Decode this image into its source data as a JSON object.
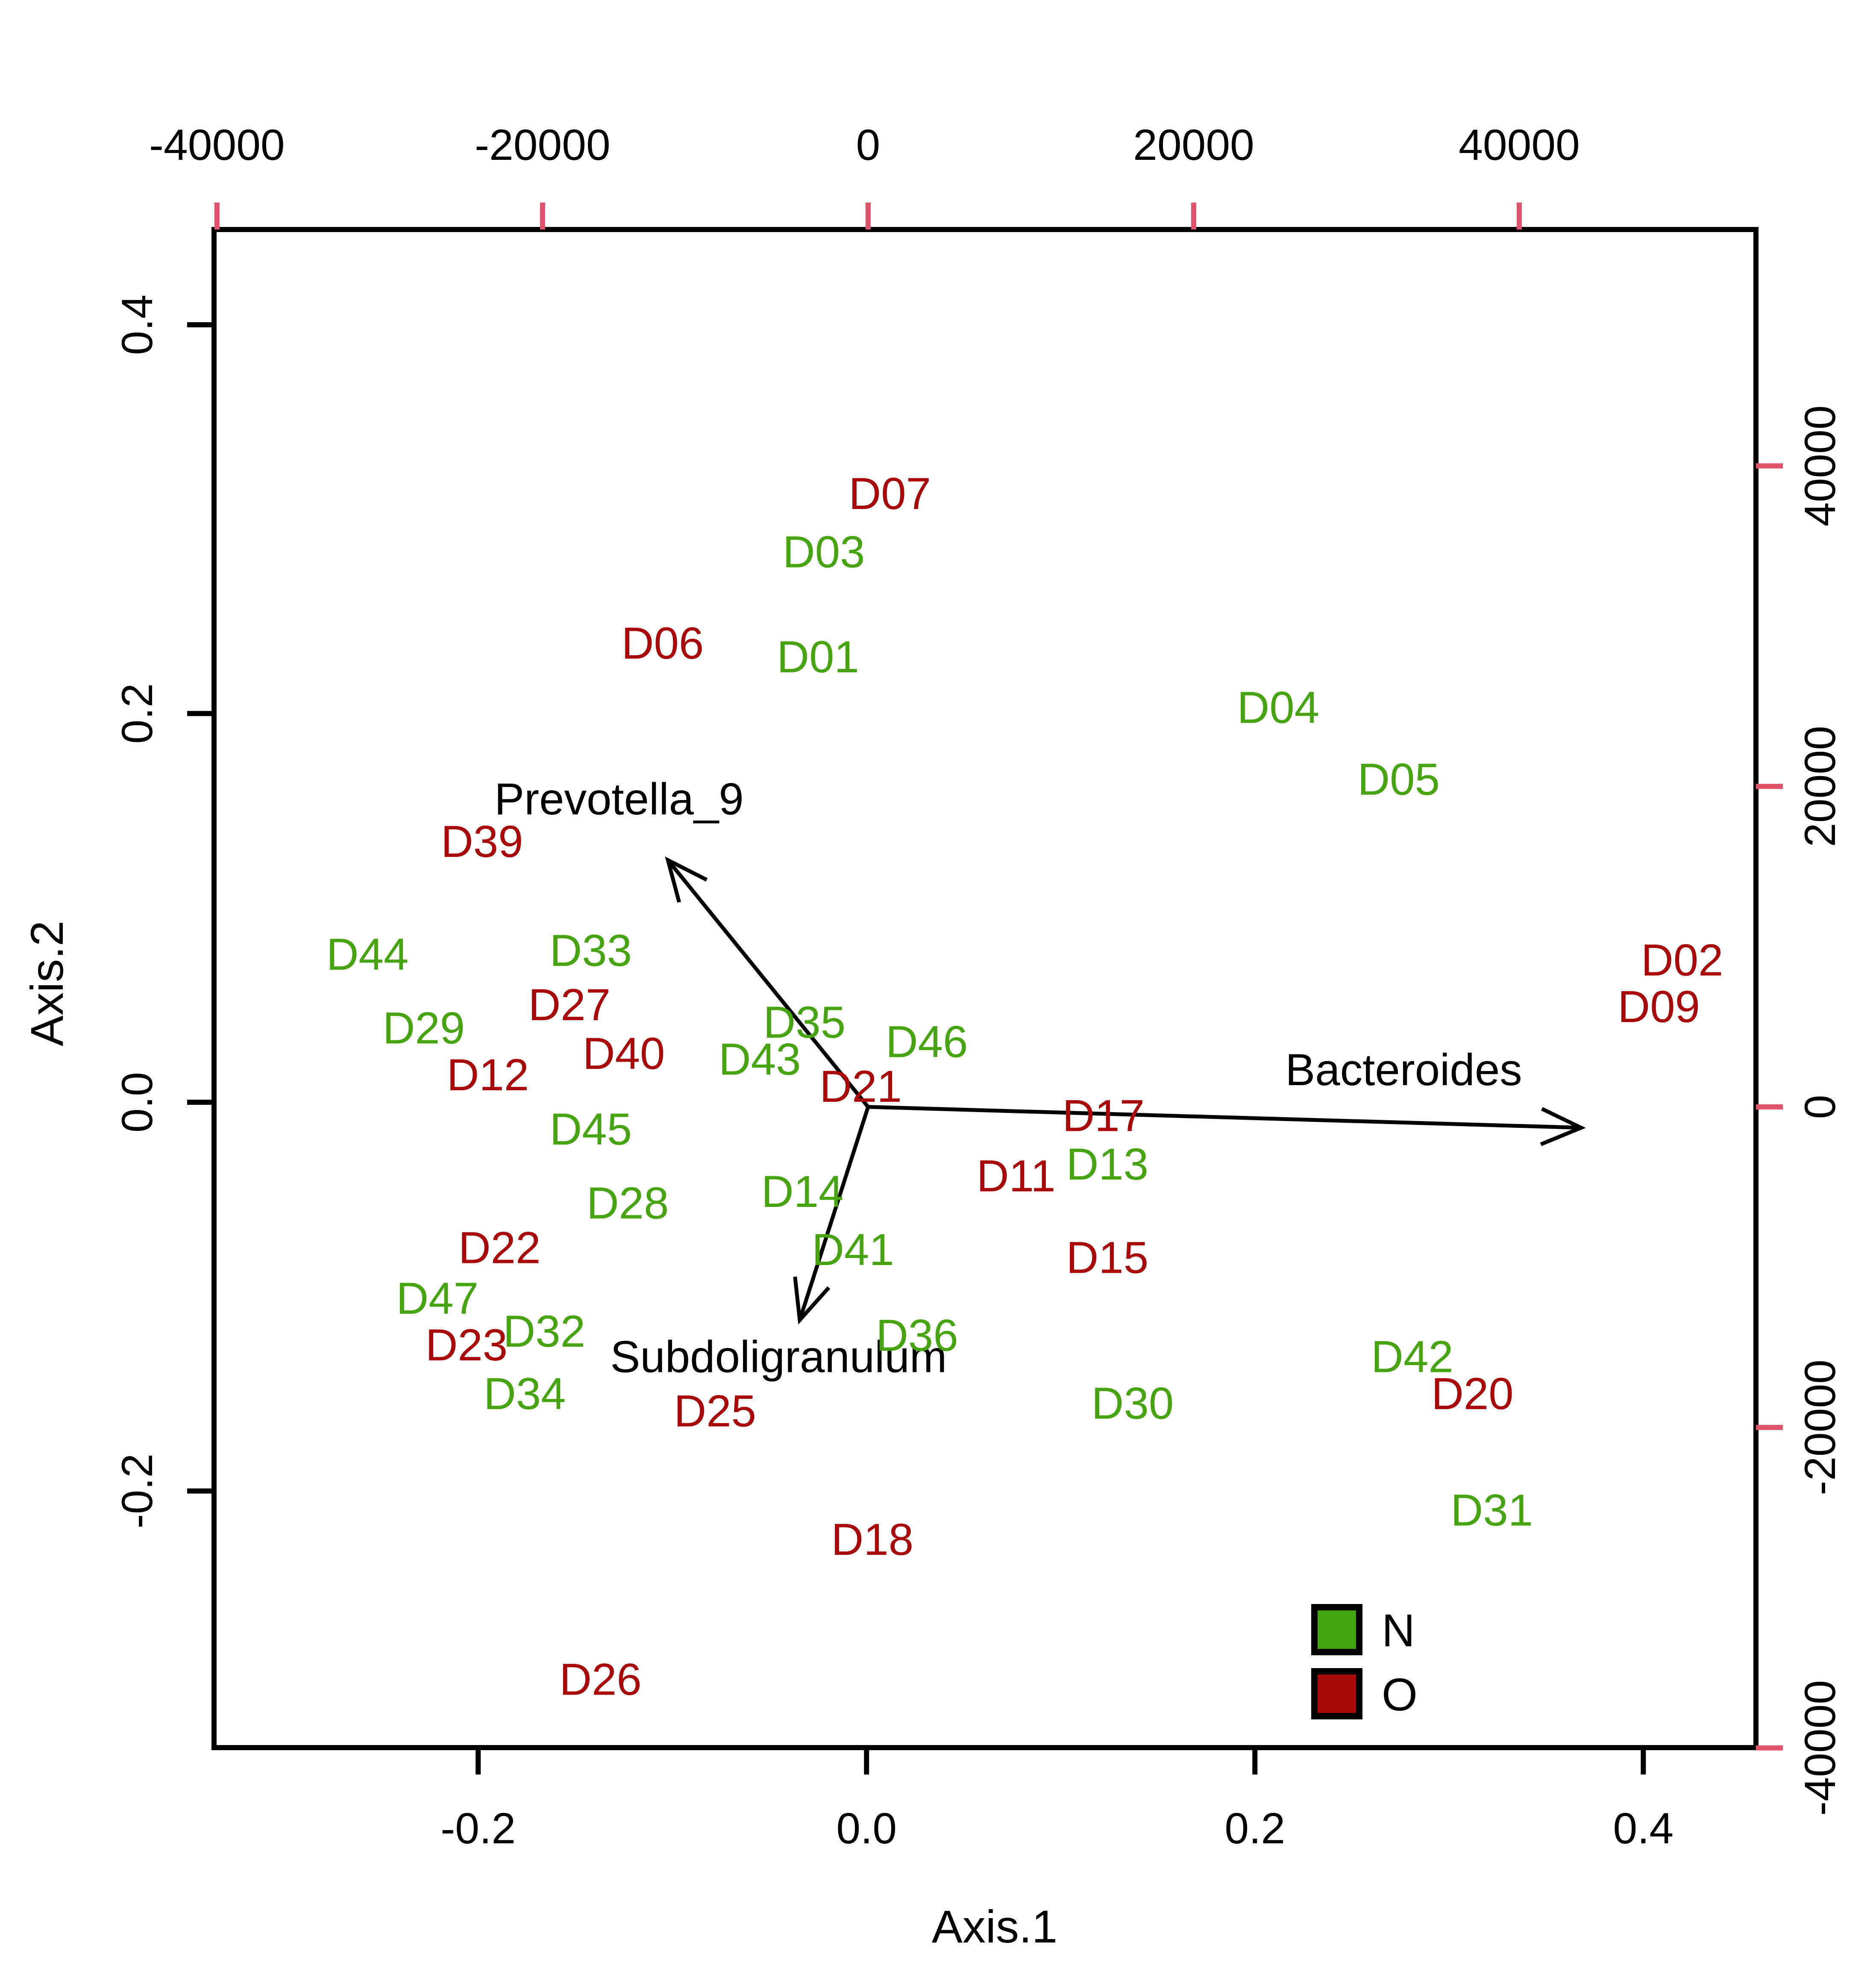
{
  "chart_data": {
    "type": "scatter",
    "subtype": "pcoa-biplot-text-labels",
    "title": "",
    "xlabel": "Axis.1",
    "ylabel": "Axis.2",
    "grid": false,
    "background": "#ffffff",
    "frame_color": "#000000",
    "axes": {
      "bottom": {
        "label": "Axis.1",
        "ticks": [
          -0.2,
          0.0,
          0.2,
          0.4
        ],
        "tick_labels": [
          "-0.2",
          "0.0",
          "0.2",
          "0.4"
        ],
        "range": [
          -0.336,
          0.458
        ],
        "tick_color": "#000000",
        "label_color": "#000000"
      },
      "left": {
        "label": "Axis.2",
        "ticks": [
          0.4,
          0.2,
          0.0,
          -0.2
        ],
        "tick_labels": [
          "0.4",
          "0.2",
          "0.0",
          "-0.2"
        ],
        "range": [
          -0.332,
          0.449
        ],
        "tick_color": "#000000",
        "label_color": "#000000"
      },
      "top": {
        "label": "",
        "ticks": [
          -40000,
          -20000,
          0,
          20000,
          40000
        ],
        "tick_labels": [
          "-40000",
          "-20000",
          "0",
          "20000",
          "40000"
        ],
        "range": [
          -40180,
          54540
        ],
        "tick_color": "#DF536B",
        "label_color": "#000000"
      },
      "right": {
        "label": "",
        "ticks": [
          40000,
          20000,
          0,
          -20000,
          -40000
        ],
        "tick_labels": [
          "40000",
          "20000",
          "0",
          "-20000",
          "-40000"
        ],
        "range": [
          -39980,
          54750
        ],
        "tick_color": "#DF536B",
        "label_color": "#000000"
      }
    },
    "groups": {
      "N": {
        "label": "N",
        "color": "#46A410"
      },
      "O": {
        "label": "O",
        "color": "#A80808"
      }
    },
    "samples": [
      {
        "id": "D01",
        "x": -0.025,
        "y": 0.229,
        "group": "N"
      },
      {
        "id": "D02",
        "x": 0.42,
        "y": 0.073,
        "group": "O"
      },
      {
        "id": "D03",
        "x": -0.022,
        "y": 0.283,
        "group": "N"
      },
      {
        "id": "D04",
        "x": 0.212,
        "y": 0.203,
        "group": "N"
      },
      {
        "id": "D05",
        "x": 0.274,
        "y": 0.166,
        "group": "N"
      },
      {
        "id": "D06",
        "x": -0.105,
        "y": 0.236,
        "group": "O"
      },
      {
        "id": "D07",
        "x": 0.012,
        "y": 0.313,
        "group": "O"
      },
      {
        "id": "D09",
        "x": 0.408,
        "y": 0.049,
        "group": "O"
      },
      {
        "id": "D11",
        "x": 0.077,
        "y": -0.038,
        "group": "O"
      },
      {
        "id": "D12",
        "x": -0.195,
        "y": 0.014,
        "group": "O"
      },
      {
        "id": "D13",
        "x": 0.124,
        "y": -0.032,
        "group": "N"
      },
      {
        "id": "D14",
        "x": -0.033,
        "y": -0.046,
        "group": "N"
      },
      {
        "id": "D15",
        "x": 0.124,
        "y": -0.08,
        "group": "O"
      },
      {
        "id": "D17",
        "x": 0.122,
        "y": -0.007,
        "group": "O"
      },
      {
        "id": "D18",
        "x": 0.003,
        "y": -0.225,
        "group": "O"
      },
      {
        "id": "D20",
        "x": 0.312,
        "y": -0.15,
        "group": "O"
      },
      {
        "id": "D21",
        "x": -0.003,
        "y": 0.008,
        "group": "O"
      },
      {
        "id": "D22",
        "x": -0.189,
        "y": -0.075,
        "group": "O"
      },
      {
        "id": "D23",
        "x": -0.206,
        "y": -0.125,
        "group": "O"
      },
      {
        "id": "D25",
        "x": -0.078,
        "y": -0.159,
        "group": "O"
      },
      {
        "id": "D26",
        "x": -0.137,
        "y": -0.297,
        "group": "O"
      },
      {
        "id": "D27",
        "x": -0.153,
        "y": 0.05,
        "group": "O"
      },
      {
        "id": "D28",
        "x": -0.123,
        "y": -0.052,
        "group": "N"
      },
      {
        "id": "D29",
        "x": -0.228,
        "y": 0.038,
        "group": "N"
      },
      {
        "id": "D30",
        "x": 0.137,
        "y": -0.155,
        "group": "N"
      },
      {
        "id": "D31",
        "x": 0.322,
        "y": -0.21,
        "group": "N"
      },
      {
        "id": "D32",
        "x": -0.166,
        "y": -0.118,
        "group": "N"
      },
      {
        "id": "D33",
        "x": -0.142,
        "y": 0.078,
        "group": "N"
      },
      {
        "id": "D34",
        "x": -0.176,
        "y": -0.15,
        "group": "N"
      },
      {
        "id": "D35",
        "x": -0.032,
        "y": 0.041,
        "group": "N"
      },
      {
        "id": "D36",
        "x": 0.026,
        "y": -0.12,
        "group": "N"
      },
      {
        "id": "D39",
        "x": -0.198,
        "y": 0.134,
        "group": "O"
      },
      {
        "id": "D40",
        "x": -0.125,
        "y": 0.025,
        "group": "O"
      },
      {
        "id": "D41",
        "x": -0.007,
        "y": -0.076,
        "group": "N"
      },
      {
        "id": "D42",
        "x": 0.281,
        "y": -0.131,
        "group": "N"
      },
      {
        "id": "D43",
        "x": -0.055,
        "y": 0.022,
        "group": "N"
      },
      {
        "id": "D44",
        "x": -0.257,
        "y": 0.076,
        "group": "N"
      },
      {
        "id": "D45",
        "x": -0.142,
        "y": -0.014,
        "group": "N"
      },
      {
        "id": "D46",
        "x": 0.031,
        "y": 0.031,
        "group": "N"
      },
      {
        "id": "D47",
        "x": -0.221,
        "y": -0.101,
        "group": "N"
      }
    ],
    "arrow_origin": [
      0,
      0
    ],
    "arrows": [
      {
        "name": "Prevotella_9",
        "tip": [
          -12300,
          15400
        ],
        "label_pos": [
          -15300,
          19200
        ]
      },
      {
        "name": "Bacteroides",
        "tip": [
          43800,
          -1300
        ],
        "label_pos": [
          32900,
          2300
        ]
      },
      {
        "name": "Subdoligranulum",
        "tip": [
          -4200,
          -13300
        ],
        "label_pos": [
          -5500,
          -15600
        ]
      }
    ],
    "arrow_color": "#000000",
    "legend": {
      "position": "bottom-right",
      "items": [
        {
          "key": "N",
          "label": "N"
        },
        {
          "key": "O",
          "label": "O"
        }
      ]
    }
  }
}
